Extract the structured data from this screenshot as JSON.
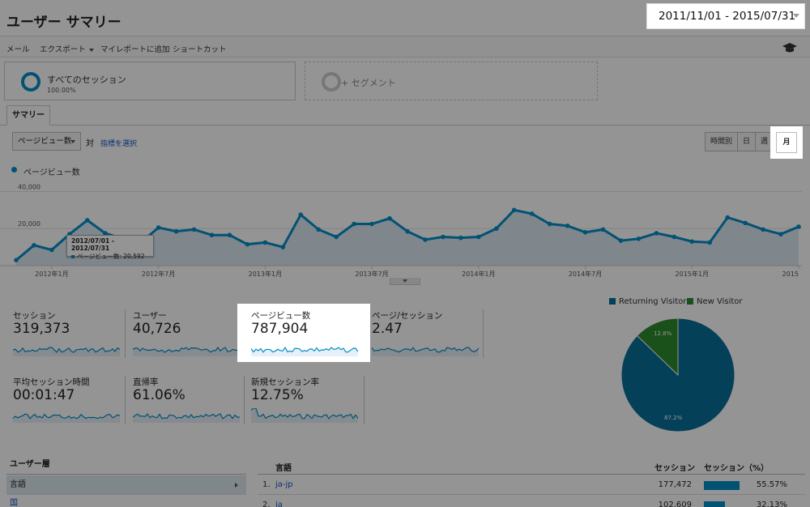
{
  "header": {
    "title": "ユーザー サマリー",
    "date_range": "2011/11/01 - 2015/07/31"
  },
  "toolbar": {
    "email": "メール",
    "export": "エクスポート",
    "add_dashboard": "マイレポートに追加",
    "shortcut": "ショートカット",
    "cap_icon": "graduation-cap-icon"
  },
  "segments": {
    "all_sessions_label": "すべてのセッション",
    "all_sessions_pct": "100.00%",
    "add_segment": "+ セグメント"
  },
  "tabs": {
    "summary": "サマリー"
  },
  "controls": {
    "metric_select": "ページビュー数",
    "vs": "対",
    "choose_metric": "指標を選択",
    "periods": [
      "時間別",
      "日",
      "週"
    ],
    "month": "月"
  },
  "chart": {
    "legend": "ページビュー数",
    "tooltip_range": "2012/07/01 - 2012/07/31",
    "tooltip_value": "ページビュー数: 20,592"
  },
  "chart_data": {
    "type": "area",
    "series": [
      {
        "name": "ページビュー数",
        "values": [
          3000,
          11000,
          8500,
          17000,
          24500,
          17500,
          14500,
          12500,
          20500,
          18500,
          19500,
          16500,
          16500,
          11500,
          12500,
          10000,
          27500,
          19500,
          15500,
          22500,
          22500,
          25500,
          18500,
          14000,
          15500,
          15000,
          15500,
          20000,
          30000,
          28000,
          22500,
          21500,
          18000,
          19500,
          13500,
          14500,
          17500,
          15500,
          13000,
          12500,
          26000,
          23000,
          19500,
          17000,
          21000
        ]
      }
    ],
    "x_ticks": [
      "2012年1月",
      "2012年7月",
      "2013年1月",
      "2013年7月",
      "2014年1月",
      "2014年7月",
      "2015年1月",
      "2015"
    ],
    "y_ticks": [
      "40,000",
      "20,000"
    ],
    "ylim": [
      0,
      45000
    ],
    "color": "#058dc7"
  },
  "scorecards": [
    {
      "label": "セッション",
      "value": "319,373"
    },
    {
      "label": "ユーザー",
      "value": "40,726"
    },
    {
      "label": "ページビュー数",
      "value": "787,904"
    },
    {
      "label": "ページ/セッション",
      "value": "2.47"
    },
    {
      "label": "平均セッション時間",
      "value": "00:01:47"
    },
    {
      "label": "直帰率",
      "value": "61.06%"
    },
    {
      "label": "新規セッション率",
      "value": "12.75%"
    }
  ],
  "pie": {
    "legend": [
      {
        "name": "Returning Visitor",
        "color": "#0a6e9a"
      },
      {
        "name": "New Visitor",
        "color": "#2e8b2e"
      }
    ],
    "slices": [
      {
        "label": "87.2%",
        "value": 87.2,
        "color": "#0a6e9a"
      },
      {
        "label": "12.8%",
        "value": 12.8,
        "color": "#2e8b2e"
      }
    ]
  },
  "dimension_table": {
    "header": "ユーザー層",
    "row1": "言語",
    "row2": "国"
  },
  "language_table": {
    "col_lang": "言語",
    "col_sessions": "セッション",
    "col_pct": "セッション（%）",
    "rows": [
      {
        "idx": "1.",
        "name": "ja-jp",
        "sessions": "177,472",
        "pct": "55.57%",
        "share": 0.5557
      },
      {
        "idx": "2.",
        "name": "ja",
        "sessions": "102,609",
        "pct": "32.13%",
        "share": 0.3213
      }
    ]
  }
}
